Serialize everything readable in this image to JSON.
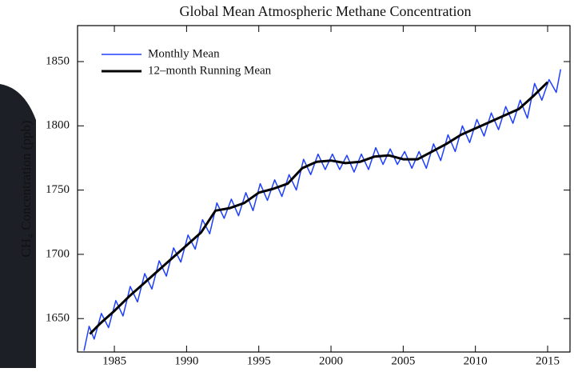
{
  "chart_data": {
    "type": "line",
    "title": "Global Mean Atmospheric Methane Concentration",
    "y_label": "CH₄ Concentration (ppb)",
    "xlim": [
      1982.45,
      2016.55
    ],
    "xticks": [
      1985,
      1990,
      1995,
      2000,
      2005,
      2010,
      2015
    ],
    "ylim": [
      1624,
      1878
    ],
    "yticks": [
      1650,
      1700,
      1750,
      1800,
      1850
    ],
    "legend": "upper left",
    "series": [
      {
        "name": "Monthly Mean",
        "color": "#1f3fff",
        "width": 1.5,
        "x": [
          1982.9,
          1983.25,
          1983.6,
          1984.1,
          1984.6,
          1985.1,
          1985.6,
          1986.1,
          1986.6,
          1987.1,
          1987.6,
          1988.1,
          1988.6,
          1989.1,
          1989.6,
          1990.1,
          1990.6,
          1991.1,
          1991.6,
          1992.1,
          1992.6,
          1993.1,
          1993.6,
          1994.1,
          1994.6,
          1995.1,
          1995.6,
          1996.1,
          1996.6,
          1997.1,
          1997.6,
          1998.1,
          1998.6,
          1999.1,
          1999.6,
          2000.1,
          2000.6,
          2001.1,
          2001.6,
          2002.1,
          2002.6,
          2003.1,
          2003.6,
          2004.1,
          2004.6,
          2005.1,
          2005.6,
          2006.1,
          2006.6,
          2007.1,
          2007.6,
          2008.1,
          2008.6,
          2009.1,
          2009.6,
          2010.1,
          2010.6,
          2011.1,
          2011.6,
          2012.1,
          2012.6,
          2013.1,
          2013.6,
          2014.1,
          2014.6,
          2015.1,
          2015.6,
          2015.9
        ],
        "values": [
          1625,
          1644,
          1634,
          1654,
          1643,
          1664,
          1652,
          1675,
          1663,
          1685,
          1673,
          1695,
          1683,
          1705,
          1694,
          1715,
          1704,
          1727,
          1716,
          1740,
          1728,
          1743,
          1730,
          1748,
          1734,
          1755,
          1742,
          1758,
          1745,
          1762,
          1750,
          1774,
          1762,
          1778,
          1766,
          1778,
          1766,
          1777,
          1764,
          1778,
          1766,
          1783,
          1770,
          1782,
          1770,
          1780,
          1767,
          1780,
          1767,
          1786,
          1773,
          1793,
          1780,
          1800,
          1787,
          1805,
          1792,
          1810,
          1797,
          1815,
          1802,
          1820,
          1806,
          1833,
          1820,
          1836,
          1826,
          1844
        ]
      },
      {
        "name": "12–month Running Mean",
        "color": "#000000",
        "width": 3,
        "x": [
          1983.3,
          1984,
          1985,
          1986,
          1987,
          1988,
          1989,
          1990,
          1991,
          1992,
          1993,
          1994,
          1995,
          1996,
          1997,
          1998,
          1999,
          2000,
          2001,
          2002,
          2003,
          2004,
          2005,
          2006,
          2007,
          2008,
          2009,
          2010,
          2011,
          2012,
          2013,
          2014,
          2015
        ],
        "values": [
          1638,
          1646,
          1656,
          1667,
          1677,
          1687,
          1697,
          1707,
          1717,
          1734,
          1736,
          1740,
          1748,
          1751,
          1755,
          1767,
          1772,
          1773,
          1771,
          1772,
          1776,
          1777,
          1774,
          1774,
          1780,
          1786,
          1793,
          1798,
          1803,
          1808,
          1813,
          1823,
          1834
        ]
      }
    ]
  }
}
